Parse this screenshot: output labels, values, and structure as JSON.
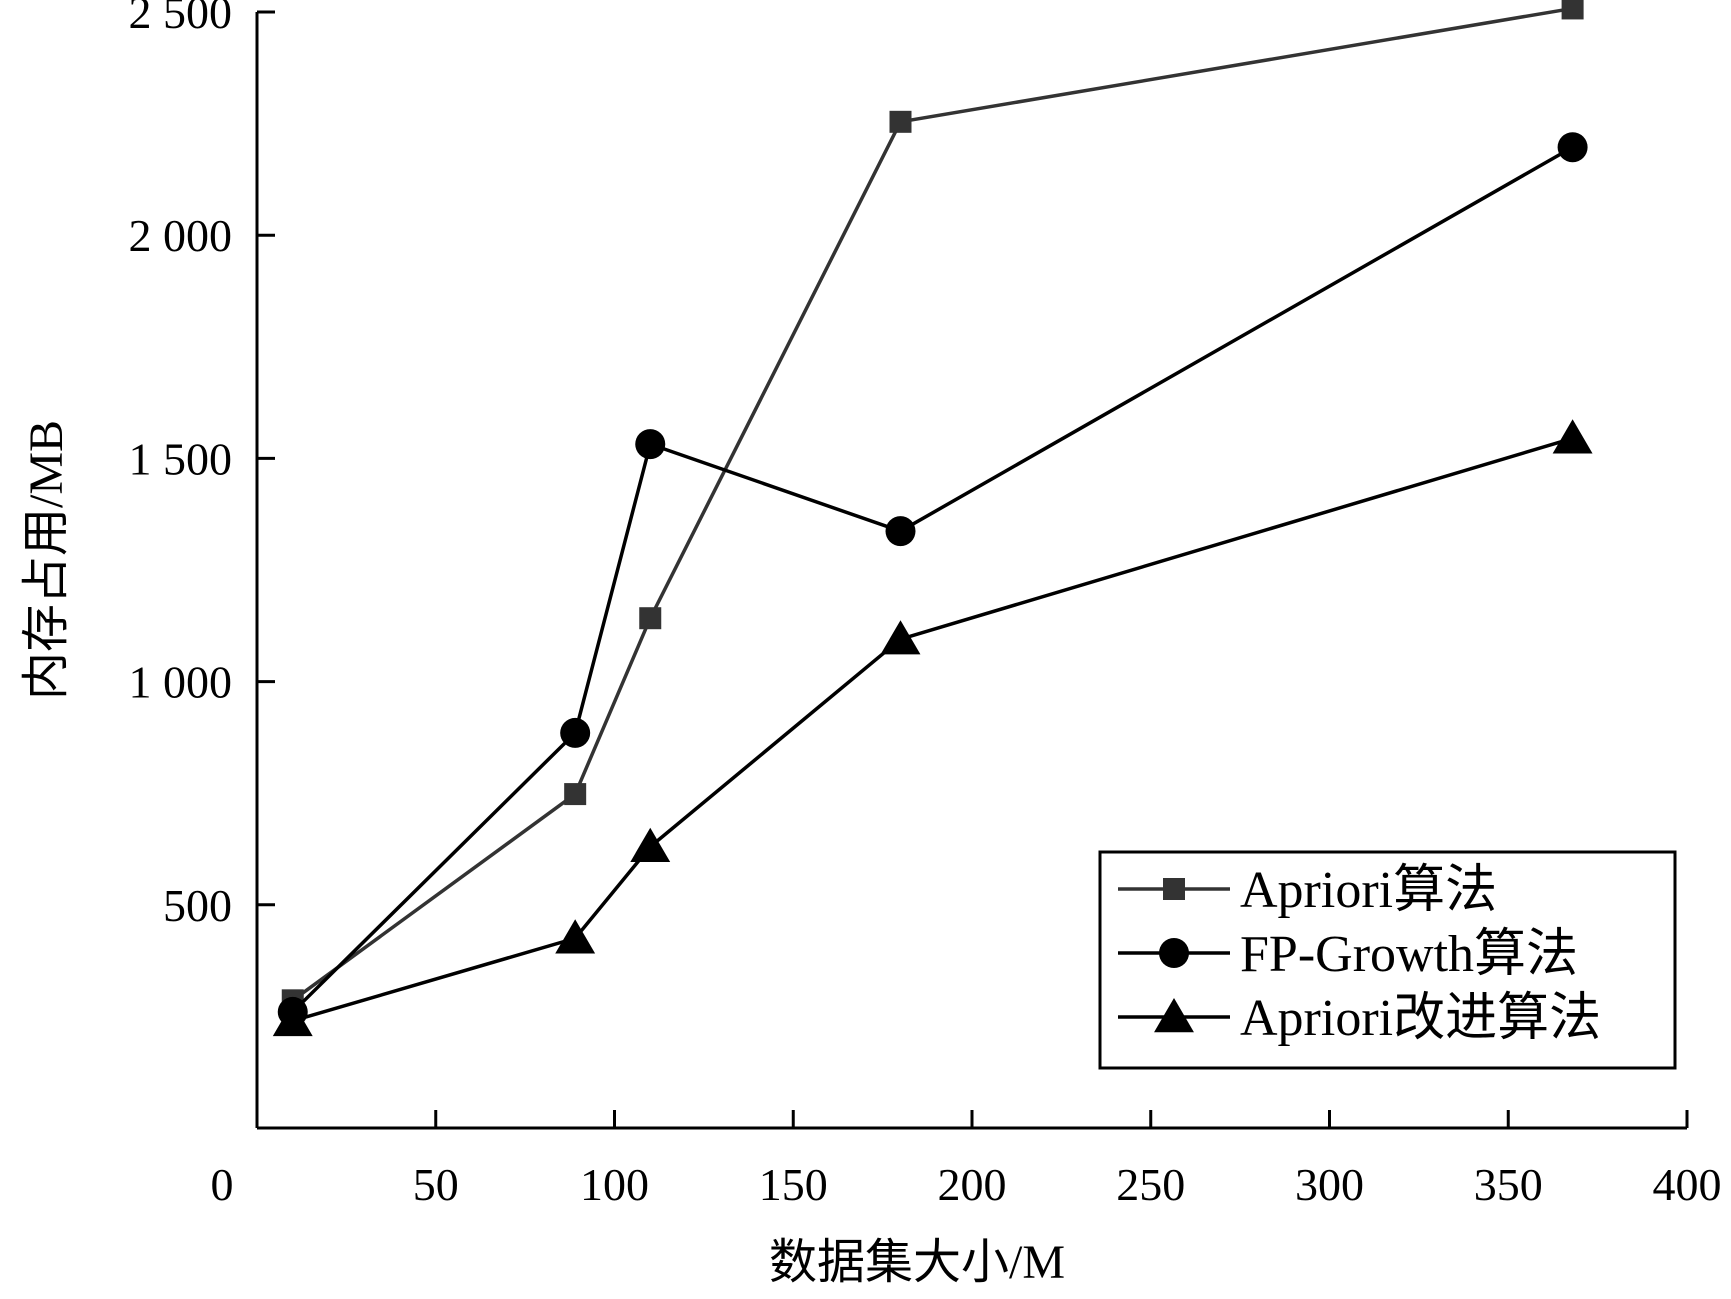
{
  "chart_data": {
    "type": "line",
    "title": "",
    "xlabel": "数据集大小/M",
    "ylabel": "内存占用/MB",
    "xlim": [
      0,
      400
    ],
    "ylim": [
      0,
      2500
    ],
    "x_ticks": [
      0,
      50,
      100,
      150,
      200,
      250,
      300,
      350,
      400
    ],
    "x_tick_labels": [
      "0",
      "50",
      "100",
      "150",
      "200",
      "250",
      "300",
      "350",
      "400"
    ],
    "y_ticks": [
      500,
      1000,
      1500,
      2000,
      2500
    ],
    "y_tick_labels": [
      "500",
      "1 000",
      "1 500",
      "2 000",
      "2 500"
    ],
    "grid": false,
    "legend_position": "bottom-right",
    "series": [
      {
        "name": "Apriori算法",
        "marker": "square",
        "color": "#333333",
        "x": [
          10,
          89,
          110,
          180,
          368
        ],
        "y": [
          286,
          748,
          1142,
          2254,
          2508
        ]
      },
      {
        "name": "FP-Growth算法",
        "marker": "circle",
        "color": "#000000",
        "x": [
          10,
          89,
          110,
          180,
          368
        ],
        "y": [
          260,
          885,
          1532,
          1337,
          2197
        ]
      },
      {
        "name": "Apriori改进算法",
        "marker": "triangle",
        "color": "#000000",
        "x": [
          10,
          89,
          110,
          180,
          368
        ],
        "y": [
          240,
          425,
          630,
          1095,
          1545
        ]
      }
    ]
  }
}
